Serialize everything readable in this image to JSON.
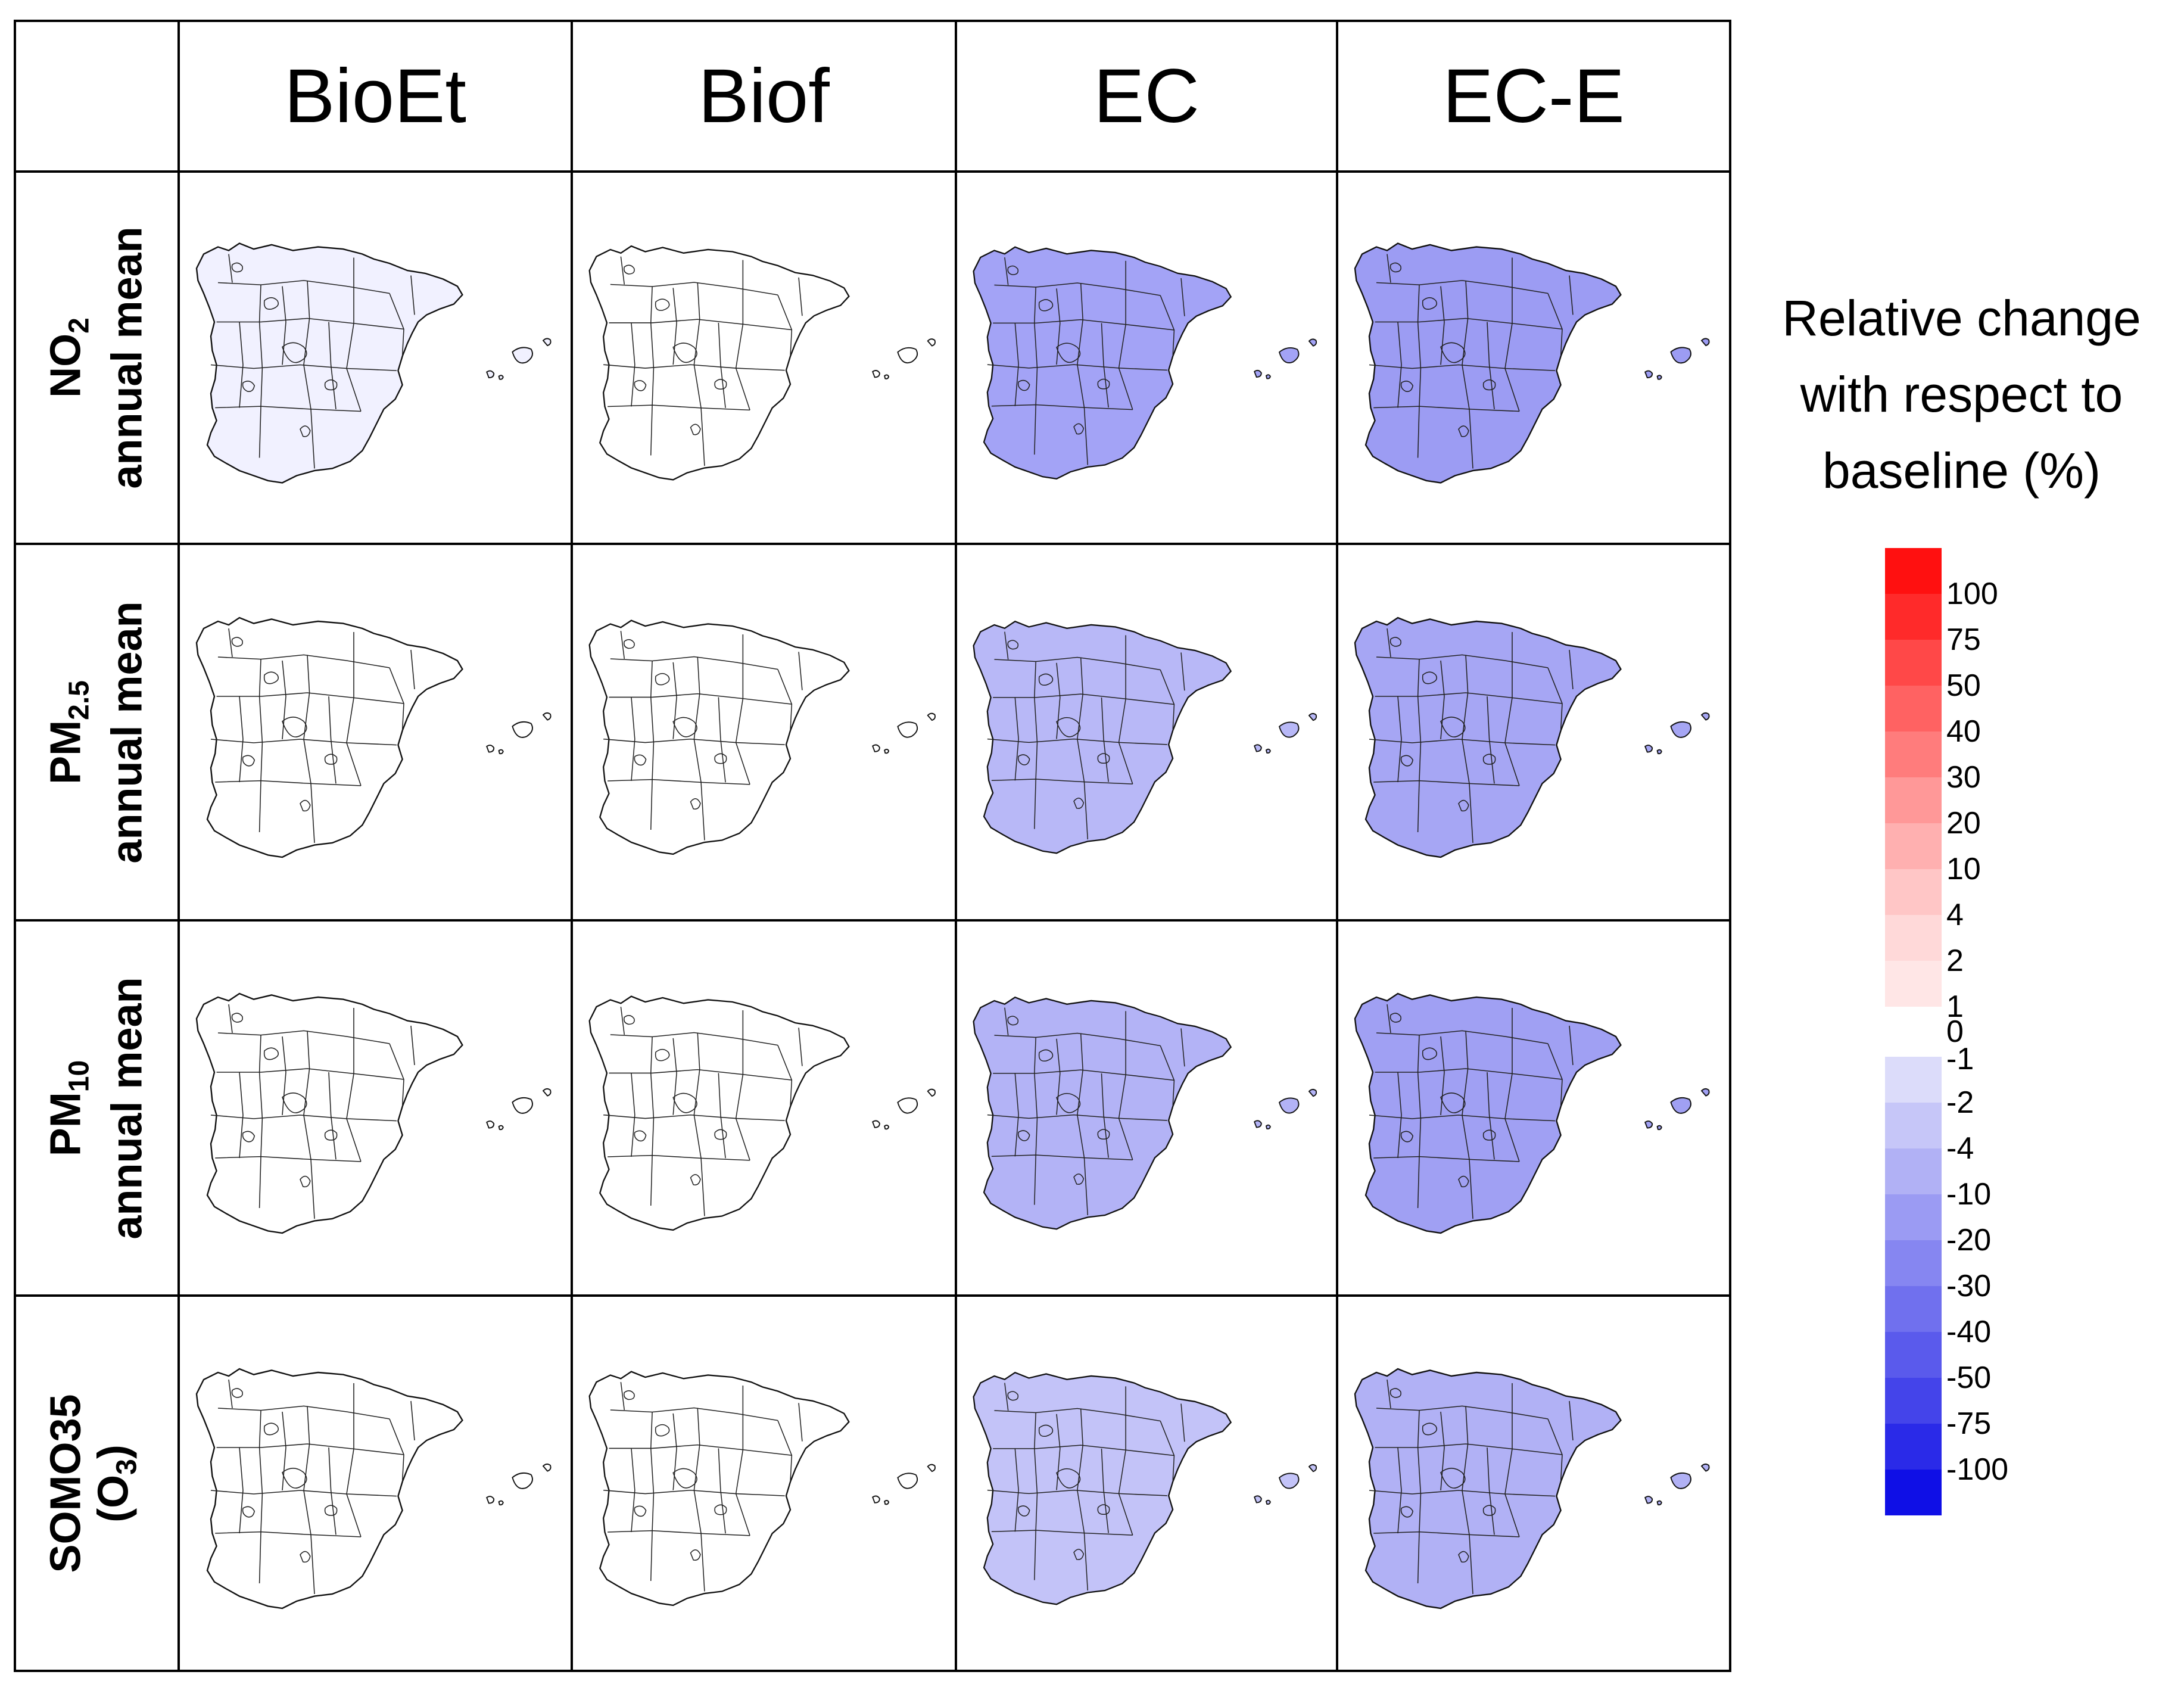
{
  "columns": [
    "BioEt",
    "Biof",
    "EC",
    "EC-E"
  ],
  "rows": [
    {
      "main": "NO",
      "sub": "2",
      "line2": "annual mean"
    },
    {
      "main": "PM",
      "sub": "2.5",
      "line2": "annual mean"
    },
    {
      "main": "PM",
      "sub": "10",
      "line2": "annual mean"
    },
    {
      "main": "SOMO35",
      "line2_pre": "(O",
      "line2_sub": "3",
      "line2_post": ")"
    }
  ],
  "map_fill": [
    [
      "#f1f1ff",
      "#ffffff",
      "#a3a3f6",
      "#9c9cf3"
    ],
    [
      "#ffffff",
      "#ffffff",
      "#b8b8f7",
      "#a6a6f4"
    ],
    [
      "#ffffff",
      "#ffffff",
      "#b3b3f6",
      "#a0a0f3"
    ],
    [
      "#ffffff",
      "#ffffff",
      "#c3c3f8",
      "#b1b1f5"
    ]
  ],
  "legend": {
    "title": [
      "Relative change",
      "with respect to",
      "baseline (%)"
    ],
    "positive": {
      "labels": [
        "100",
        "75",
        "50",
        "40",
        "30",
        "20",
        "10",
        "4",
        "2",
        "1"
      ],
      "colors": [
        "#ff1010",
        "#ff2a2a",
        "#ff4848",
        "#ff6262",
        "#ff7c7c",
        "#ff9898",
        "#ffb0b0",
        "#ffc6c6",
        "#ffd9d9",
        "#ffe6e6"
      ]
    },
    "zero": "0",
    "negative": {
      "labels": [
        "-1",
        "-2",
        "-4",
        "-10",
        "-20",
        "-30",
        "-40",
        "-50",
        "-75",
        "-100"
      ],
      "colors": [
        "#dcdcfa",
        "#c6c6f8",
        "#b1b1f5",
        "#9b9bf3",
        "#8686f1",
        "#7070ee",
        "#5a5aec",
        "#4444ea",
        "#2a2ae8",
        "#0f0fe6"
      ]
    }
  }
}
